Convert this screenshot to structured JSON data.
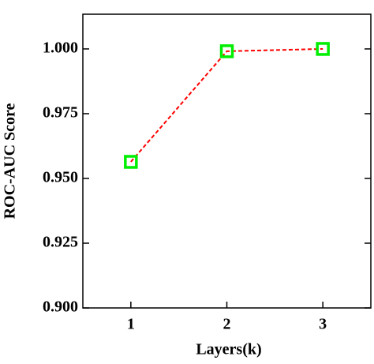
{
  "chart_data": {
    "type": "line",
    "x_label": "Layers(k)",
    "y_label": "ROC-AUC Score",
    "x": [
      1,
      2,
      3
    ],
    "series": [
      {
        "color": "#ff0000",
        "marker_color": "#00ee00",
        "values": [
          0.9564,
          0.9991,
          1.0
        ]
      }
    ],
    "xlim": [
      0.5,
      3.5
    ],
    "ylim": [
      0.9,
      1.0134
    ],
    "xticks": [
      1,
      2,
      3
    ],
    "yticks": [
      {
        "value": 0.9,
        "label": "0.900"
      },
      {
        "value": 0.925,
        "label": "0.925"
      },
      {
        "value": 0.95,
        "label": "0.950"
      },
      {
        "value": 0.975,
        "label": "0.975"
      },
      {
        "value": 1.0,
        "label": "1.000"
      }
    ]
  }
}
